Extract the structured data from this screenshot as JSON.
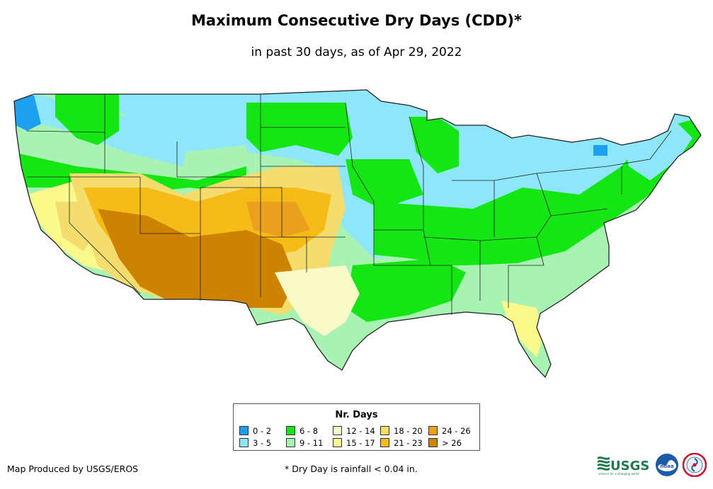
{
  "title": "Maximum Consecutive Dry Days (CDD)*",
  "subtitle": "in past 30 days, as of Apr 29, 2022",
  "legend": {
    "title": "Nr. Days",
    "items": [
      {
        "label": "0 - 2",
        "color": "#1ea0f0"
      },
      {
        "label": "3 - 5",
        "color": "#8ee6fa"
      },
      {
        "label": "6 - 8",
        "color": "#14e614"
      },
      {
        "label": "9 - 11",
        "color": "#a8f2b4"
      },
      {
        "label": "12 - 14",
        "color": "#fafac8"
      },
      {
        "label": "15 - 17",
        "color": "#fafa8c"
      },
      {
        "label": "18 - 20",
        "color": "#f5dc6e"
      },
      {
        "label": "21 - 23",
        "color": "#f5bc18"
      },
      {
        "label": "24 - 26",
        "color": "#eba01e"
      },
      {
        "label": "> 26",
        "color": "#cd8200"
      }
    ]
  },
  "footer": {
    "credit": "Map Produced by USGS/EROS",
    "note": "* Dry Day is rainfall < 0.04 in."
  },
  "logos": {
    "usgs": "USGS",
    "usgs_tagline": "science for a changing world",
    "noaa": "noaa"
  },
  "icons": {
    "usgs": "usgs-logo-icon",
    "noaa": "noaa-logo-icon",
    "nws": "nws-logo-icon"
  }
}
